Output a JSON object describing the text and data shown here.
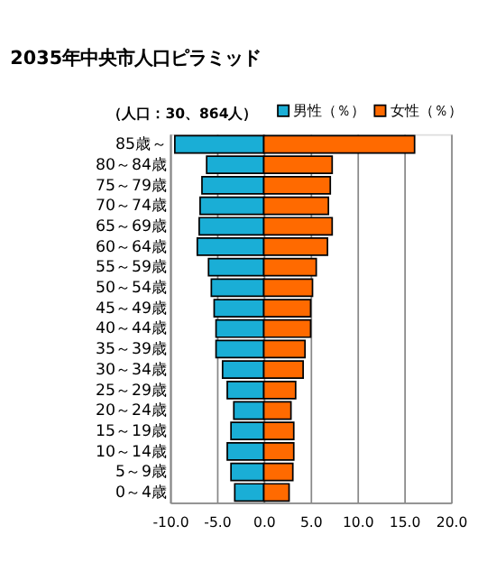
{
  "chart_data": {
    "type": "bar",
    "orientation": "horizontal",
    "stacked": true,
    "title": "2035年中央市人口ピラミッド",
    "annotations": [
      "（人口：30、864人）"
    ],
    "categories": [
      "85歳～",
      "80～84歳",
      "75～79歳",
      "70～74歳",
      "65～69歳",
      "60～64歳",
      "55～59歳",
      "50～54歳",
      "45～49歳",
      "40～44歳",
      "35～39歳",
      "30～34歳",
      "25～29歳",
      "20～24歳",
      "15～19歳",
      "10～14歳",
      "5～9歳",
      "0～4歳"
    ],
    "series": [
      {
        "name": "男性（％）",
        "color": "#1aaed6",
        "values": [
          -9.5,
          -6.1,
          -6.6,
          -6.8,
          -6.9,
          -7.1,
          -5.9,
          -5.6,
          -5.3,
          -5.1,
          -5.1,
          -4.4,
          -3.9,
          -3.2,
          -3.5,
          -3.9,
          -3.5,
          -3.1
        ]
      },
      {
        "name": "女性（％）",
        "color": "#ff6a00",
        "values": [
          16.1,
          7.3,
          7.1,
          6.9,
          7.3,
          6.8,
          5.6,
          5.2,
          5.0,
          5.0,
          4.4,
          4.2,
          3.4,
          2.9,
          3.2,
          3.2,
          3.1,
          2.7
        ]
      }
    ],
    "xlim": [
      -10,
      20
    ],
    "xticks": [
      {
        "value": -10,
        "label": "-10.0"
      },
      {
        "value": -5,
        "label": "-5.0"
      },
      {
        "value": 0,
        "label": "0.0"
      },
      {
        "value": 5,
        "label": "5.0"
      },
      {
        "value": 10,
        "label": "10.0"
      },
      {
        "value": 15,
        "label": "15.0"
      },
      {
        "value": 20,
        "label": "20.0"
      }
    ],
    "grid": "x",
    "legend": "top right"
  }
}
